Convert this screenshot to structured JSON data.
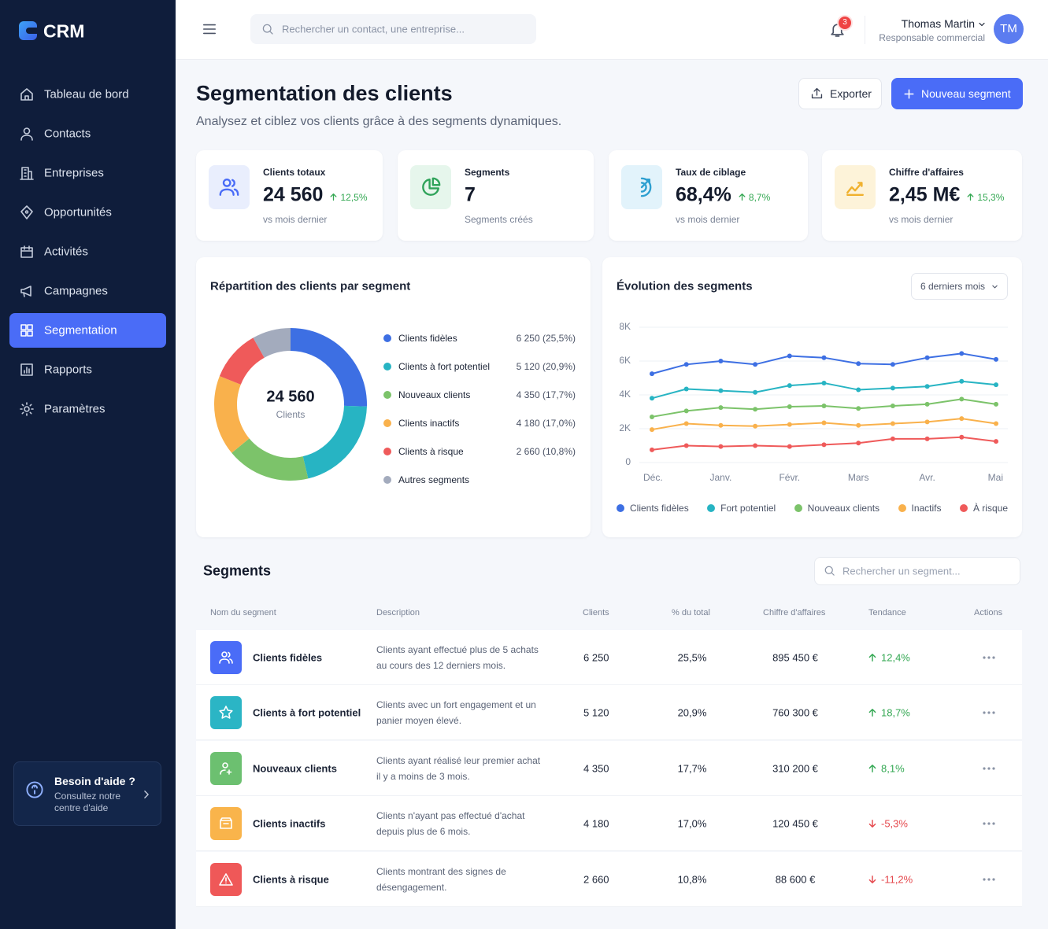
{
  "sidebar": {
    "logo": "CRM",
    "nav": [
      {
        "label": "Tableau de bord"
      },
      {
        "label": "Contacts"
      },
      {
        "label": "Entreprises"
      },
      {
        "label": "Opportunités"
      },
      {
        "label": "Activités"
      },
      {
        "label": "Campagnes"
      },
      {
        "label": "Segmentation",
        "active": true
      },
      {
        "label": "Rapports"
      },
      {
        "label": "Paramètres"
      }
    ],
    "help": {
      "title": "Besoin d'aide ?",
      "text": "Consultez notre centre d'aide"
    }
  },
  "topbar": {
    "search_placeholder": "Rechercher un contact, une entreprise...",
    "notifications": 3,
    "user_name": "Thomas Martin",
    "user_role": "Responsable commercial",
    "user_initials": "TM"
  },
  "header": {
    "title": "Segmentation des clients",
    "subtitle": "Analysez et ciblez vos clients grâce à des segments dynamiques.",
    "export_button": "Exporter",
    "new_button": "Nouveau segment"
  },
  "kpis": [
    {
      "label": "Clients totaux",
      "value": "24 560",
      "change": "12,5%",
      "note": "vs mois dernier",
      "color": "#4a6cf7",
      "bg": "#e9eefd"
    },
    {
      "label": "Segments",
      "value": "7",
      "note": "Segments créés",
      "color": "#2fa35a",
      "bg": "#e6f6ec"
    },
    {
      "label": "Taux de ciblage",
      "value": "68,4%",
      "change": "8,7%",
      "note": "vs mois dernier",
      "color": "#2d9fd0",
      "bg": "#e2f3fb"
    },
    {
      "label": "Chiffre d'affaires",
      "value": "2,45 M€",
      "change": "15,3%",
      "note": "vs mois dernier",
      "color": "#f0b12e",
      "bg": "#fdf3d9"
    }
  ],
  "chart_data": [
    {
      "type": "pie",
      "title": "Répartition des clients par segment",
      "center_value": "24 560",
      "center_label": "Clients",
      "categories": [
        "Clients fidèles",
        "Clients à fort potentiel",
        "Nouveaux clients",
        "Clients inactifs",
        "Clients à risque",
        "Autres segments"
      ],
      "values": [
        6250,
        5120,
        4350,
        4180,
        2660,
        2000
      ],
      "value_labels": [
        "6 250 (25,5%)",
        "5 120 (20,9%)",
        "4 350 (17,7%)",
        "4 180 (17,0%)",
        "2 660 (10,8%)",
        null
      ],
      "colors": [
        "#3d6fe3",
        "#27b4c3",
        "#7cc36a",
        "#f9b14c",
        "#ef5a5a",
        "#a3abbd"
      ]
    },
    {
      "type": "line",
      "title": "Évolution des segments",
      "control": "6 derniers mois",
      "categories": [
        "Déc.",
        null,
        "Janv.",
        null,
        "Févr.",
        null,
        "Mars",
        null,
        "Avr.",
        null,
        "Mai"
      ],
      "ylim": [
        0,
        8000
      ],
      "yticks": [
        0,
        {
          "value": 2000,
          "label": "2K"
        },
        {
          "value": 4000,
          "label": "4K"
        },
        {
          "value": 6000,
          "label": "6K"
        },
        {
          "value": 8000,
          "label": "8K"
        }
      ],
      "grid": true,
      "series": [
        {
          "name": "Clients fidèles",
          "color": "#3d6fe3",
          "values": [
            5250,
            5800,
            6000,
            5800,
            6300,
            6200,
            5850,
            5800,
            6200,
            6450,
            6100
          ]
        },
        {
          "name": "Fort potentiel",
          "color": "#27b4c3",
          "values": [
            3800,
            4350,
            4250,
            4150,
            4550,
            4700,
            4300,
            4400,
            4500,
            4800,
            4600
          ]
        },
        {
          "name": "Nouveaux clients",
          "color": "#7cc36a",
          "values": [
            2700,
            3050,
            3250,
            3150,
            3300,
            3350,
            3200,
            3350,
            3450,
            3750,
            3450
          ]
        },
        {
          "name": "Inactifs",
          "color": "#f9b14c",
          "values": [
            1950,
            2300,
            2200,
            2150,
            2250,
            2350,
            2200,
            2300,
            2400,
            2600,
            2300
          ]
        },
        {
          "name": "À risque",
          "color": "#ef5a5a",
          "values": [
            750,
            1000,
            950,
            1000,
            950,
            1050,
            1150,
            1400,
            1400,
            1500,
            1250
          ]
        }
      ]
    }
  ],
  "table": {
    "title": "Segments",
    "search_placeholder": "Rechercher un segment...",
    "columns": [
      "Nom du segment",
      "Description",
      "Clients",
      "% du total",
      "Chiffre d'affaires",
      "Tendance",
      "Actions"
    ],
    "rows": [
      {
        "name": "Clients fidèles",
        "description": "Clients ayant effectué plus de 5 achats au cours des 12 derniers mois.",
        "clients": "6 250",
        "share": "25,5%",
        "revenue": "895 450 €",
        "trend": "12,4%",
        "color": "#4a6cf7"
      },
      {
        "name": "Clients à fort potentiel",
        "description": "Clients avec un fort engagement et un panier moyen élevé.",
        "clients": "5 120",
        "share": "20,9%",
        "revenue": "760 300 €",
        "trend": "18,7%",
        "color": "#2bb5c5"
      },
      {
        "name": "Nouveaux clients",
        "description": "Clients ayant réalisé leur premier achat il y a moins de 3 mois.",
        "clients": "4 350",
        "share": "17,7%",
        "revenue": "310 200 €",
        "trend": "8,1%",
        "color": "#6cc070"
      },
      {
        "name": "Clients inactifs",
        "description": "Clients n'ayant pas effectué d'achat depuis plus de 6 mois.",
        "clients": "4 180",
        "share": "17,0%",
        "revenue": "120 450 €",
        "trend": "-5,3%",
        "color": "#f9b44b"
      },
      {
        "name": "Clients à risque",
        "description": "Clients montrant des signes de désengagement.",
        "clients": "2 660",
        "share": "10,8%",
        "revenue": "88 600 €",
        "trend": "-11,2%",
        "color": "#ef5858"
      }
    ]
  }
}
